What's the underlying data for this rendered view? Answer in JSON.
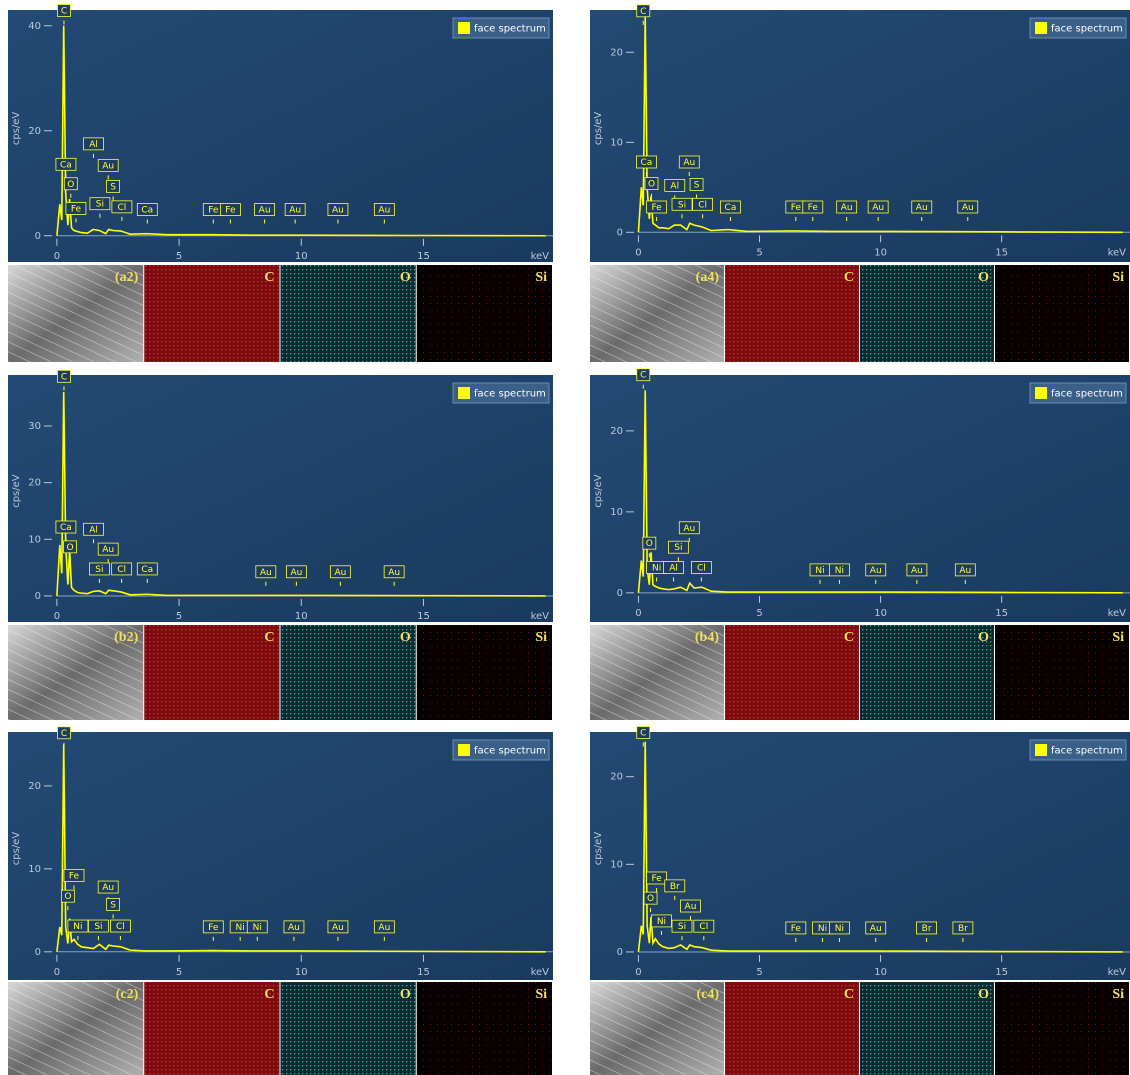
{
  "chart_data": [
    {
      "type": "line",
      "ylabel": "cps/eV",
      "xlabel": "keV",
      "x": [
        0,
        0.12,
        0.2,
        0.28,
        0.36,
        0.45,
        0.52,
        0.6,
        0.7,
        0.85,
        1.0,
        1.25,
        1.49,
        1.74,
        2.0,
        2.12,
        2.3,
        2.62,
        3.0,
        3.69,
        4.5,
        6.4,
        8,
        10,
        15,
        20
      ],
      "series": [
        {
          "name": "face spectrum",
          "color": "#ffff00",
          "values": [
            0,
            6,
            3,
            40,
            8,
            2,
            7,
            1.5,
            1,
            0.8,
            0.6,
            0.5,
            1.2,
            1,
            0.4,
            1.2,
            1,
            0.9,
            0.3,
            0.4,
            0.2,
            0.2,
            0.1,
            0.1,
            0.05,
            0
          ]
        }
      ],
      "xlim": [
        -2.0,
        20.3
      ],
      "ylim": [
        -5,
        43
      ],
      "xticks": [
        0,
        5,
        10,
        15
      ],
      "yticks": [
        0,
        20,
        40
      ],
      "peaks": [
        {
          "label": "C",
          "x": 0.29,
          "y": 41
        },
        {
          "label": "Ca",
          "x": 0.37,
          "y": 11.7
        },
        {
          "label": "O",
          "x": 0.57,
          "y": 8
        },
        {
          "label": "Fe",
          "x": 0.78,
          "y": 3.3
        },
        {
          "label": "Al",
          "x": 1.5,
          "y": 15.6
        },
        {
          "label": "Si",
          "x": 1.76,
          "y": 4.2
        },
        {
          "label": "Au",
          "x": 2.1,
          "y": 11.5
        },
        {
          "label": "S",
          "x": 2.3,
          "y": 7.5
        },
        {
          "label": "Cl",
          "x": 2.66,
          "y": 3.6
        },
        {
          "label": "Ca",
          "x": 3.7,
          "y": 3.1
        },
        {
          "label": "Fe",
          "x": 6.4,
          "y": 3.1
        },
        {
          "label": "Fe",
          "x": 7.1,
          "y": 3.1
        },
        {
          "label": "Au",
          "x": 8.5,
          "y": 3.1
        },
        {
          "label": "Au",
          "x": 9.75,
          "y": 3.1
        },
        {
          "label": "Au",
          "x": 11.5,
          "y": 3.1
        },
        {
          "label": "Au",
          "x": 13.4,
          "y": 3.1
        }
      ],
      "map_labels": [
        "(a2)",
        "C",
        "O",
        "Si"
      ]
    },
    {
      "type": "line",
      "ylabel": "cps/eV",
      "xlabel": "keV",
      "x": [
        0,
        0.12,
        0.2,
        0.28,
        0.36,
        0.45,
        0.52,
        0.6,
        0.7,
        0.85,
        1.0,
        1.25,
        1.49,
        1.74,
        2.0,
        2.12,
        2.3,
        2.62,
        3.0,
        3.69,
        4.5,
        6.4,
        8,
        10,
        15,
        20
      ],
      "series": [
        {
          "name": "face spectrum",
          "color": "#ffff00",
          "values": [
            0,
            5,
            3,
            24,
            5,
            1.5,
            4,
            1,
            0.8,
            0.5,
            0.5,
            0.4,
            0.8,
            0.8,
            0.3,
            1,
            0.8,
            0.6,
            0.2,
            0.3,
            0.1,
            0.15,
            0.1,
            0.1,
            0.05,
            0
          ]
        }
      ],
      "xlim": [
        -2.0,
        20.3
      ],
      "ylim": [
        -3.3,
        24.7
      ],
      "xticks": [
        0,
        5,
        10,
        15
      ],
      "yticks": [
        0,
        10,
        20
      ],
      "peaks": [
        {
          "label": "C",
          "x": 0.2,
          "y": 23.5
        },
        {
          "label": "Ca",
          "x": 0.33,
          "y": 6.7
        },
        {
          "label": "O",
          "x": 0.54,
          "y": 4.3
        },
        {
          "label": "Fe",
          "x": 0.75,
          "y": 1.7
        },
        {
          "label": "Al",
          "x": 1.5,
          "y": 4.1
        },
        {
          "label": "Si",
          "x": 1.8,
          "y": 2
        },
        {
          "label": "Au",
          "x": 2.1,
          "y": 6.7
        },
        {
          "label": "S",
          "x": 2.4,
          "y": 4.2
        },
        {
          "label": "Cl",
          "x": 2.65,
          "y": 2
        },
        {
          "label": "Ca",
          "x": 3.8,
          "y": 1.7
        },
        {
          "label": "Fe",
          "x": 6.5,
          "y": 1.7
        },
        {
          "label": "Fe",
          "x": 7.2,
          "y": 1.7
        },
        {
          "label": "Au",
          "x": 8.6,
          "y": 1.7
        },
        {
          "label": "Au",
          "x": 9.9,
          "y": 1.7
        },
        {
          "label": "Au",
          "x": 11.7,
          "y": 1.7
        },
        {
          "label": "Au",
          "x": 13.6,
          "y": 1.7
        }
      ],
      "map_labels": [
        "(a4)",
        "C",
        "O",
        "Si"
      ]
    },
    {
      "type": "line",
      "ylabel": "cps/eV",
      "xlabel": "keV",
      "x": [
        0,
        0.12,
        0.2,
        0.28,
        0.36,
        0.45,
        0.52,
        0.6,
        0.7,
        0.85,
        1.0,
        1.25,
        1.49,
        1.74,
        2.0,
        2.12,
        2.3,
        2.62,
        3.0,
        3.69,
        4.5,
        6.4,
        8,
        10,
        15,
        20
      ],
      "series": [
        {
          "name": "face spectrum",
          "color": "#ffff00",
          "values": [
            0,
            9,
            4,
            36,
            9,
            2,
            8,
            1.5,
            1,
            0.6,
            0.5,
            0.4,
            0.8,
            0.9,
            0.4,
            1,
            0.9,
            0.7,
            0.2,
            0.3,
            0.1,
            0.1,
            0.1,
            0.1,
            0.05,
            0
          ]
        }
      ],
      "xlim": [
        -2.0,
        20.3
      ],
      "ylim": [
        -4.6,
        39
      ],
      "xticks": [
        0,
        5,
        10,
        15
      ],
      "yticks": [
        0,
        10,
        20,
        30
      ],
      "peaks": [
        {
          "label": "C",
          "x": 0.29,
          "y": 37
        },
        {
          "label": "Ca",
          "x": 0.37,
          "y": 10.4
        },
        {
          "label": "O",
          "x": 0.54,
          "y": 6.9
        },
        {
          "label": "Al",
          "x": 1.5,
          "y": 10
        },
        {
          "label": "Si",
          "x": 1.74,
          "y": 3
        },
        {
          "label": "Au",
          "x": 2.1,
          "y": 6.5
        },
        {
          "label": "Cl",
          "x": 2.65,
          "y": 3
        },
        {
          "label": "Ca",
          "x": 3.7,
          "y": 3
        },
        {
          "label": "Au",
          "x": 8.55,
          "y": 2.5
        },
        {
          "label": "Au",
          "x": 9.8,
          "y": 2.5
        },
        {
          "label": "Au",
          "x": 11.6,
          "y": 2.5
        },
        {
          "label": "Au",
          "x": 13.8,
          "y": 2.5
        }
      ],
      "map_labels": [
        "(b2)",
        "C",
        "O",
        "Si"
      ]
    },
    {
      "type": "line",
      "ylabel": "cps/eV",
      "xlabel": "keV",
      "x": [
        0,
        0.12,
        0.2,
        0.28,
        0.36,
        0.45,
        0.52,
        0.6,
        0.7,
        0.85,
        1.0,
        1.25,
        1.49,
        1.74,
        2.0,
        2.12,
        2.3,
        2.62,
        3.0,
        3.69,
        4.5,
        6.4,
        8,
        10,
        15,
        20
      ],
      "series": [
        {
          "name": "face spectrum",
          "color": "#ffff00",
          "values": [
            0,
            4,
            2,
            25,
            3,
            1,
            5,
            1,
            0.8,
            0.6,
            0.5,
            0.4,
            0.5,
            0.7,
            0.3,
            1.2,
            0.6,
            0.7,
            0.2,
            0.1,
            0.1,
            0.1,
            0.1,
            0.1,
            0.05,
            0
          ]
        }
      ],
      "xlim": [
        -2.0,
        20.3
      ],
      "ylim": [
        -3.6,
        26.9
      ],
      "xticks": [
        0,
        5,
        10,
        15
      ],
      "yticks": [
        0,
        10,
        20
      ],
      "peaks": [
        {
          "label": "C",
          "x": 0.2,
          "y": 25.7
        },
        {
          "label": "O",
          "x": 0.45,
          "y": 4.9
        },
        {
          "label": "Ni",
          "x": 0.75,
          "y": 1.9
        },
        {
          "label": "Al",
          "x": 1.45,
          "y": 1.9
        },
        {
          "label": "Si",
          "x": 1.65,
          "y": 4.4
        },
        {
          "label": "Au",
          "x": 2.1,
          "y": 6.8
        },
        {
          "label": "Cl",
          "x": 2.6,
          "y": 1.9
        },
        {
          "label": "Ni",
          "x": 7.5,
          "y": 1.6
        },
        {
          "label": "Ni",
          "x": 8.3,
          "y": 1.6
        },
        {
          "label": "Au",
          "x": 9.8,
          "y": 1.6
        },
        {
          "label": "Au",
          "x": 11.5,
          "y": 1.6
        },
        {
          "label": "Au",
          "x": 13.5,
          "y": 1.6
        }
      ],
      "map_labels": [
        "(b4)",
        "C",
        "O",
        "Si"
      ]
    },
    {
      "type": "line",
      "ylabel": "cps/eV",
      "xlabel": "keV",
      "x": [
        0,
        0.12,
        0.2,
        0.28,
        0.36,
        0.45,
        0.52,
        0.6,
        0.7,
        0.85,
        1.0,
        1.25,
        1.49,
        1.74,
        2.0,
        2.12,
        2.3,
        2.62,
        3.0,
        3.69,
        4.5,
        6.4,
        8,
        10,
        15,
        20
      ],
      "series": [
        {
          "name": "face spectrum",
          "color": "#ffff00",
          "values": [
            0,
            3,
            2,
            25,
            3,
            1,
            4,
            1.2,
            1.5,
            0.9,
            0.6,
            0.5,
            0.4,
            0.9,
            0.3,
            0.8,
            0.7,
            0.6,
            0.2,
            0.1,
            0.1,
            0.15,
            0.1,
            0.1,
            0.05,
            0
          ]
        }
      ],
      "xlim": [
        -2.0,
        20.3
      ],
      "ylim": [
        -3.4,
        26.5
      ],
      "xticks": [
        0,
        5,
        10,
        15
      ],
      "yticks": [
        0,
        10,
        20
      ],
      "peaks": [
        {
          "label": "C",
          "x": 0.29,
          "y": 25.2
        },
        {
          "label": "Fe",
          "x": 0.7,
          "y": 8
        },
        {
          "label": "O",
          "x": 0.45,
          "y": 5.5
        },
        {
          "label": "Ni",
          "x": 0.86,
          "y": 1.9
        },
        {
          "label": "Au",
          "x": 2.1,
          "y": 6.6
        },
        {
          "label": "Si",
          "x": 1.7,
          "y": 1.9
        },
        {
          "label": "S",
          "x": 2.3,
          "y": 4.5
        },
        {
          "label": "Cl",
          "x": 2.6,
          "y": 1.9
        },
        {
          "label": "Fe",
          "x": 6.4,
          "y": 1.8
        },
        {
          "label": "Ni",
          "x": 7.5,
          "y": 1.8
        },
        {
          "label": "Ni",
          "x": 8.2,
          "y": 1.8
        },
        {
          "label": "Au",
          "x": 9.7,
          "y": 1.8
        },
        {
          "label": "Au",
          "x": 11.5,
          "y": 1.8
        },
        {
          "label": "Au",
          "x": 13.4,
          "y": 1.8
        }
      ],
      "map_labels": [
        "(c2)",
        "C",
        "O",
        "Si"
      ]
    },
    {
      "type": "line",
      "ylabel": "cps/eV",
      "xlabel": "keV",
      "x": [
        0,
        0.12,
        0.2,
        0.28,
        0.36,
        0.45,
        0.52,
        0.6,
        0.7,
        0.85,
        1.0,
        1.25,
        1.49,
        1.74,
        2.0,
        2.12,
        2.3,
        2.62,
        3.0,
        3.69,
        4.5,
        6.4,
        8,
        10,
        15,
        20
      ],
      "series": [
        {
          "name": "face spectrum",
          "color": "#ffff00",
          "values": [
            0,
            3,
            2,
            24,
            3,
            1,
            4,
            1,
            1.5,
            0.9,
            0.6,
            0.4,
            0.5,
            0.8,
            0.3,
            0.8,
            0.6,
            0.5,
            0.2,
            0.1,
            0.1,
            0.1,
            0.1,
            0.1,
            0.05,
            0
          ]
        }
      ],
      "xlim": [
        -2.0,
        20.3
      ],
      "ylim": [
        -3.2,
        25.1
      ],
      "xticks": [
        0,
        5,
        10,
        15
      ],
      "yticks": [
        0,
        10,
        20
      ],
      "peaks": [
        {
          "label": "C",
          "x": 0.2,
          "y": 23.9
        },
        {
          "label": "Fe",
          "x": 0.75,
          "y": 7.3
        },
        {
          "label": "O",
          "x": 0.5,
          "y": 5
        },
        {
          "label": "Br",
          "x": 1.5,
          "y": 6.4
        },
        {
          "label": "Ni",
          "x": 0.95,
          "y": 2.4
        },
        {
          "label": "Au",
          "x": 2.15,
          "y": 4.1
        },
        {
          "label": "Si",
          "x": 1.8,
          "y": 1.8
        },
        {
          "label": "Cl",
          "x": 2.7,
          "y": 1.8
        },
        {
          "label": "Fe",
          "x": 6.5,
          "y": 1.6
        },
        {
          "label": "Ni",
          "x": 7.6,
          "y": 1.6
        },
        {
          "label": "Ni",
          "x": 8.3,
          "y": 1.6
        },
        {
          "label": "Au",
          "x": 9.8,
          "y": 1.6
        },
        {
          "label": "Br",
          "x": 11.9,
          "y": 1.6
        },
        {
          "label": "Br",
          "x": 13.4,
          "y": 1.6
        }
      ],
      "map_labels": [
        "(c4)",
        "C",
        "O",
        "Si"
      ]
    }
  ]
}
